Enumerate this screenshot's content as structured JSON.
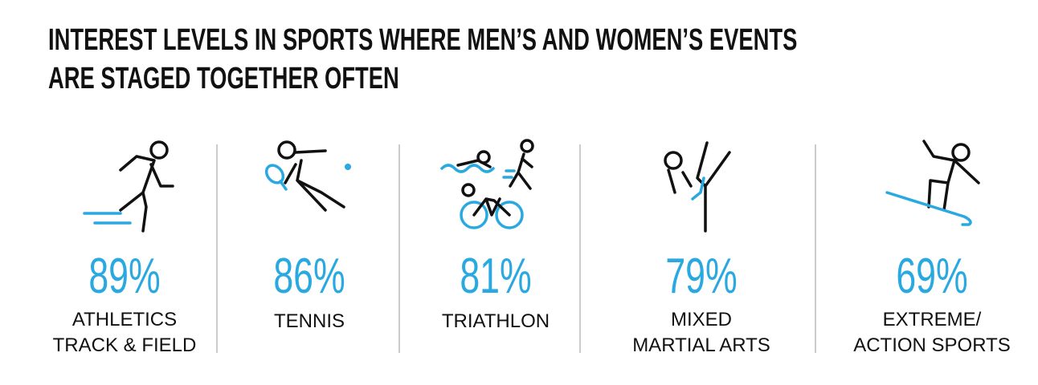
{
  "title_lines": [
    "INTEREST LEVELS IN SPORTS WHERE MEN’S AND WOMEN’S EVENTS",
    "ARE STAGED TOGETHER OFTEN"
  ],
  "items": [
    {
      "percent": "89%",
      "label_lines": [
        "ATHLETICS",
        "TRACK & FIELD"
      ]
    },
    {
      "percent": "86%",
      "label_lines": [
        "TENNIS"
      ]
    },
    {
      "percent": "81%",
      "label_lines": [
        "TRIATHLON"
      ]
    },
    {
      "percent": "79%",
      "label_lines": [
        "MIXED",
        "MARTIAL ARTS"
      ]
    },
    {
      "percent": "69%",
      "label_lines": [
        "EXTREME/",
        "ACTION SPORTS"
      ]
    }
  ]
}
